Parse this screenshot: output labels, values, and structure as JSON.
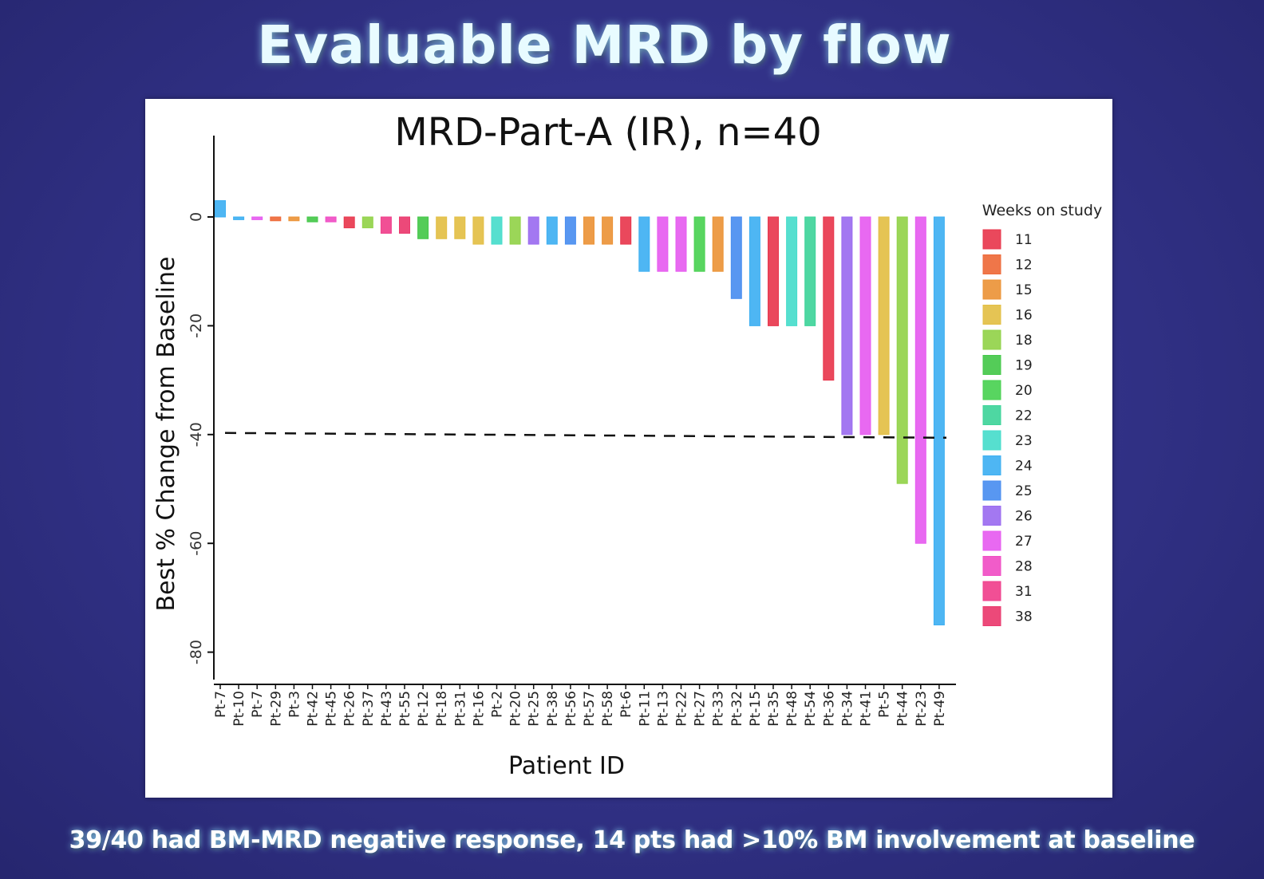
{
  "slide": {
    "title": "Evaluable MRD by flow",
    "footer": "39/40 had BM-MRD negative response, 14 pts had >10% BM involvement at baseline"
  },
  "chart_data": {
    "type": "bar",
    "title": "MRD-Part-A (IR), n=40",
    "xlabel": "Patient ID",
    "ylabel": "Best % Change from Baseline",
    "ylim": [
      -85,
      15
    ],
    "yticks": [
      0,
      -20,
      -40,
      -60,
      -80
    ],
    "reference_line": {
      "y": -40,
      "style": "dashed"
    },
    "grid": false,
    "legend": {
      "title": "Weeks on study",
      "position": "right"
    },
    "weeks_colors": {
      "11": "#e8384e",
      "12": "#ee6a3a",
      "15": "#ec9438",
      "16": "#e3bf45",
      "18": "#92d34a",
      "19": "#45c84a",
      "20": "#4ad152",
      "22": "#3fd49a",
      "23": "#48dccb",
      "24": "#3fb0f2",
      "25": "#4a8ef0",
      "26": "#9b6cf0",
      "27": "#e65cf0",
      "28": "#f04ec4",
      "31": "#f0408c",
      "38": "#ea3a6e"
    },
    "categories": [
      "Pt-7",
      "Pt-10",
      "Pt-7",
      "Pt-29",
      "Pt-3",
      "Pt-42",
      "Pt-45",
      "Pt-26",
      "Pt-37",
      "Pt-43",
      "Pt-55",
      "Pt-12",
      "Pt-18",
      "Pt-31",
      "Pt-16",
      "Pt-2",
      "Pt-20",
      "Pt-25",
      "Pt-38",
      "Pt-56",
      "Pt-57",
      "Pt-58",
      "Pt-6",
      "Pt-11",
      "Pt-13",
      "Pt-22",
      "Pt-27",
      "Pt-33",
      "Pt-32",
      "Pt-15",
      "Pt-35",
      "Pt-48",
      "Pt-54",
      "Pt-36",
      "Pt-34",
      "Pt-41",
      "Pt-5",
      "Pt-44",
      "Pt-23",
      "Pt-49"
    ],
    "values": [
      3,
      -0.5,
      -0.5,
      -0.7,
      -0.7,
      -0.9,
      -0.9,
      -2,
      -2,
      -3,
      -3,
      -4,
      -4,
      -4,
      -5,
      -5,
      -5,
      -5,
      -5,
      -5,
      -5,
      -5,
      -5,
      -10,
      -10,
      -10,
      -10,
      -10,
      -15,
      -20,
      -20,
      -20,
      -20,
      -30,
      -40,
      -40,
      -40,
      -49,
      -60,
      -75
    ],
    "weeks": [
      "24",
      "24",
      "27",
      "12",
      "15",
      "19",
      "28",
      "11",
      "18",
      "31",
      "38",
      "19",
      "16",
      "16",
      "16",
      "23",
      "18",
      "26",
      "24",
      "25",
      "15",
      "15",
      "11",
      "24",
      "27",
      "27",
      "20",
      "15",
      "25",
      "24",
      "11",
      "23",
      "22",
      "11",
      "26",
      "27",
      "16",
      "18",
      "27",
      "24"
    ]
  }
}
